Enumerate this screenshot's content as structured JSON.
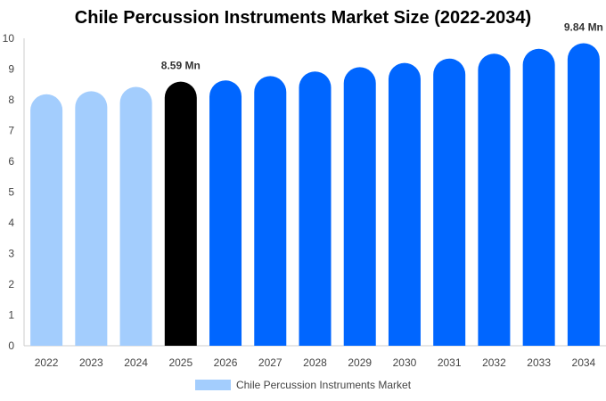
{
  "chart_data": {
    "type": "bar",
    "title": "Chile Percussion Instruments Market Size (2022-2034)",
    "categories": [
      "2022",
      "2023",
      "2024",
      "2025",
      "2026",
      "2027",
      "2028",
      "2029",
      "2030",
      "2031",
      "2032",
      "2033",
      "2034"
    ],
    "series": [
      {
        "name": "Chile Percussion Instruments Market",
        "values": [
          8.18,
          8.28,
          8.42,
          8.59,
          8.63,
          8.77,
          8.92,
          9.06,
          9.2,
          9.34,
          9.5,
          9.66,
          9.84
        ]
      }
    ],
    "ylim": [
      0,
      10
    ],
    "yticks": [
      "0",
      "1",
      "2",
      "3",
      "4",
      "5",
      "6",
      "7",
      "8",
      "9",
      "10"
    ],
    "xlabel": "",
    "ylabel": "",
    "annotations": [
      {
        "category": "2025",
        "text": "8.59 Mn"
      },
      {
        "category": "2034",
        "text": "9.84 Mn"
      }
    ],
    "colors": {
      "historical": "#a3cdfd",
      "current": "#000000",
      "forecast": "#0066ff",
      "legend_swatch": "#a3cdfd",
      "axis": "#cccccc"
    },
    "bar_color_groups": [
      "historical",
      "historical",
      "historical",
      "current",
      "forecast",
      "forecast",
      "forecast",
      "forecast",
      "forecast",
      "forecast",
      "forecast",
      "forecast",
      "forecast"
    ],
    "legend_position": "bottom-center",
    "grid": false
  }
}
